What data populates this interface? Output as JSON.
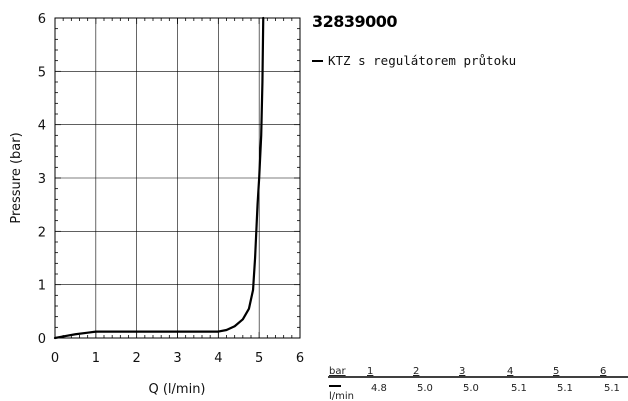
{
  "chart_data": {
    "type": "line",
    "title": "32839000",
    "xlabel": "Q (l/min)",
    "ylabel": "Pressure (bar)",
    "xlim": [
      0,
      6
    ],
    "ylim": [
      0,
      6
    ],
    "xticks": [
      "0",
      "1",
      "2",
      "3",
      "4",
      "5",
      "6"
    ],
    "yticks": [
      "0",
      "1",
      "2",
      "3",
      "4",
      "5",
      "6"
    ],
    "grid": true,
    "legend_position": "right",
    "series": [
      {
        "name": "KTZ s regulátorem průtoku",
        "color": "#000000",
        "x": [
          0,
          0.2,
          0.5,
          0.8,
          1.0,
          2.0,
          3.0,
          4.0,
          4.2,
          4.4,
          4.6,
          4.75,
          4.85,
          4.9,
          4.93,
          4.96,
          5.0,
          5.05,
          5.08,
          5.1
        ],
        "y": [
          0,
          0.03,
          0.07,
          0.1,
          0.12,
          0.12,
          0.12,
          0.12,
          0.15,
          0.22,
          0.35,
          0.55,
          0.9,
          1.5,
          2.0,
          2.5,
          3.0,
          3.8,
          4.8,
          6.0
        ]
      }
    ],
    "table": {
      "header_label": "bar",
      "unit_label": "l/min",
      "pressures": [
        "1",
        "2",
        "3",
        "4",
        "5",
        "6"
      ],
      "flows": [
        "4.8",
        "5.0",
        "5.0",
        "5.1",
        "5.1",
        "5.1"
      ]
    }
  }
}
